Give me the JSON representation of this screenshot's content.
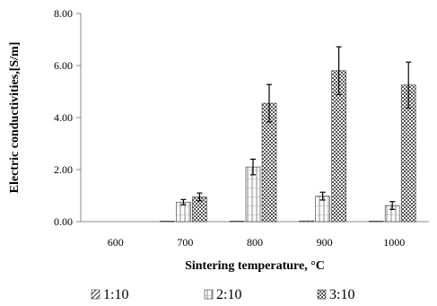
{
  "chart_data": {
    "type": "bar",
    "title": "",
    "xlabel": "Sintering temperature, °C",
    "ylabel": "Electric conductivities,[S/m]",
    "categories": [
      "600",
      "700",
      "800",
      "900",
      "1000"
    ],
    "ylim": [
      0,
      8
    ],
    "yticks": [
      "0.00",
      "2.00",
      "4.00",
      "6.00",
      "8.00"
    ],
    "grid": false,
    "legend_position": "bottom",
    "series": [
      {
        "name": "1:10",
        "values": [
          0,
          0.02,
          0.02,
          0.03,
          0.02
        ],
        "errors": [
          0,
          0,
          0,
          0,
          0
        ],
        "pattern": "diagonal"
      },
      {
        "name": "2:10",
        "values": [
          0,
          0.75,
          2.1,
          0.98,
          0.62
        ],
        "errors": [
          0,
          0.1,
          0.3,
          0.15,
          0.15
        ],
        "pattern": "grid"
      },
      {
        "name": "3:10",
        "values": [
          0,
          0.95,
          4.55,
          5.8,
          5.25
        ],
        "errors": [
          0,
          0.15,
          0.72,
          0.92,
          0.88
        ],
        "pattern": "checker"
      }
    ]
  }
}
